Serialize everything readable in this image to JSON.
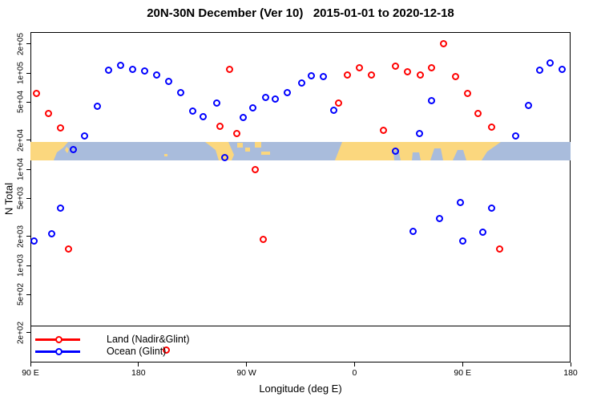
{
  "title": "20N-30N December (Ver 10)   2015-01-01 to 2020-12-18",
  "axes": {
    "y": {
      "label": "N Total",
      "scale": "log",
      "tick_labels": [
        "2e+05",
        "1e+05",
        "5e+04",
        "2e+04",
        "1e+04",
        "5e+03",
        "2e+03",
        "1e+03",
        "5e+02",
        "2e+02"
      ],
      "tick_values": [
        200000,
        100000,
        50000,
        20000,
        10000,
        5000,
        2000,
        1000,
        500,
        200
      ]
    },
    "x": {
      "label": "Longitude (deg E)",
      "tick_labels": [
        "90 E",
        "180",
        "90 W",
        "0",
        "90 E",
        "180"
      ],
      "tick_lons": [
        90,
        180,
        270,
        360,
        450,
        540
      ],
      "range_note": "axis starts at 90E and continues eastward 450 degrees (longitudes wrap past the dateline)"
    }
  },
  "legend": {
    "items": [
      {
        "label": "Land (Nadir&Glint)",
        "color": "#ff0000"
      },
      {
        "label": "Ocean (Glint)",
        "color": "#0000ff"
      }
    ]
  },
  "colors": {
    "land_series": "#ff0000",
    "ocean_series": "#0000ff",
    "map_ocean": "#a9bcdc",
    "map_land": "#fbd77e",
    "axis": "#000000"
  },
  "chart_data": {
    "type": "scatter",
    "title": "20N-30N December (Ver 10)   2015-01-01 to 2020-12-18",
    "xlabel": "Longitude (deg E)",
    "ylabel": "N Total",
    "y_scale": "log",
    "ylim": [
      130,
      250000
    ],
    "xlim_deg_e_continuing": [
      90,
      540
    ],
    "series": [
      {
        "name": "Land (Nadir&Glint)",
        "color": "#ff0000",
        "marker": "open-circle",
        "points": [
          [
            95,
            61000
          ],
          [
            105,
            38000
          ],
          [
            115,
            27000
          ],
          [
            122,
            1470
          ],
          [
            203,
            133
          ],
          [
            248,
            28000
          ],
          [
            256,
            108000
          ],
          [
            262,
            23500
          ],
          [
            277,
            10000
          ],
          [
            284,
            1850
          ],
          [
            347,
            49000
          ],
          [
            354,
            96000
          ],
          [
            364,
            114000
          ],
          [
            374,
            96000
          ],
          [
            384,
            25500
          ],
          [
            394,
            117000
          ],
          [
            404,
            102000
          ],
          [
            415,
            96000
          ],
          [
            424,
            113000
          ],
          [
            434,
            203000
          ],
          [
            444,
            92500
          ],
          [
            454,
            61000
          ],
          [
            463,
            38000
          ],
          [
            474,
            27500
          ],
          [
            481,
            1470
          ]
        ]
      },
      {
        "name": "Ocean (Glint)",
        "color": "#0000ff",
        "marker": "open-circle",
        "points": [
          [
            93,
            1780
          ],
          [
            108,
            2150
          ],
          [
            115,
            3970
          ],
          [
            126,
            16100
          ],
          [
            135,
            22000
          ],
          [
            146,
            45500
          ],
          [
            155,
            106000
          ],
          [
            165,
            121000
          ],
          [
            175,
            110000
          ],
          [
            185,
            104000
          ],
          [
            195,
            96000
          ],
          [
            205,
            82500
          ],
          [
            215,
            62000
          ],
          [
            225,
            40000
          ],
          [
            234,
            35000
          ],
          [
            245,
            49000
          ],
          [
            252,
            13300
          ],
          [
            267,
            34200
          ],
          [
            275,
            43000
          ],
          [
            286,
            55200
          ],
          [
            294,
            54000
          ],
          [
            304,
            63000
          ],
          [
            316,
            79000
          ],
          [
            324,
            94000
          ],
          [
            334,
            92500
          ],
          [
            343,
            41300
          ],
          [
            394,
            15500
          ],
          [
            409,
            2250
          ],
          [
            414,
            23500
          ],
          [
            424,
            52000
          ],
          [
            431,
            3100
          ],
          [
            448,
            4550
          ],
          [
            450,
            1780
          ],
          [
            467,
            2210
          ],
          [
            474,
            3970
          ],
          [
            494,
            22000
          ],
          [
            505,
            46400
          ],
          [
            514,
            106000
          ],
          [
            523,
            126000
          ],
          [
            533,
            108000
          ]
        ]
      }
    ],
    "map_band": {
      "description": "horizontal world-map strip of the 20N-30N latitude band drawn across the plot",
      "value_top": 19200,
      "value_bottom": 12400,
      "ocean_color": "#a9bcdc",
      "land_color": "#fbd77e",
      "land_paths": [
        "M0,0 L47,0 L41,7 L33,13 L29,23 L0,23 Z",
        "M45,6 L48,9 L46,14 L43,10 Z",
        "M167,15 h4 v3 h-4 Z",
        "M218,0 L247,0 L254,16 L251,23 L235,23 L231,10 Z",
        "M258,1 h7 v6 h-7 Z",
        "M268,7 h6 v5 h-6 Z",
        "M280,0 h8 v7 h-8 Z",
        "M288,12 h11 v4 h-11 Z",
        "M380,23 L389,0 L587,0 L570,12 L563,23 L544,23 L540,10 L533,10 L527,23 L515,23 L512,8 L504,8 L499,23 L487,23 L485,13 L477,13 L476,23 L462,23 L459,9 L453,12 L454,23 Z"
      ]
    }
  }
}
